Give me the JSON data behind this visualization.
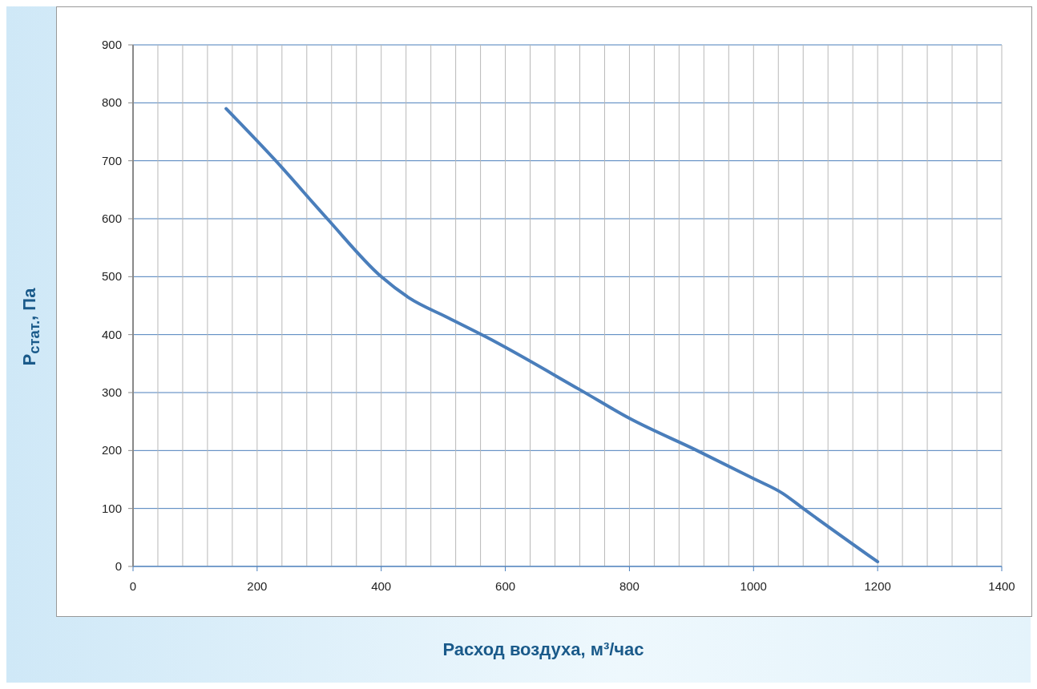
{
  "chart_data": {
    "type": "line",
    "xlabel": "Расход воздуха, м³/час",
    "ylabel": "P$_{стат.}$, Па",
    "x": [
      150,
      230,
      313,
      400,
      444,
      508,
      569,
      720,
      801,
      909,
      1001,
      1047,
      1080,
      1200
    ],
    "series": [
      {
        "color": "#4a7ebb",
        "values": [
          790,
          700,
          600,
          500,
          464,
          429,
          396,
          305,
          255,
          200,
          151,
          126,
          100,
          8
        ]
      }
    ],
    "xlim": [
      0,
      1400
    ],
    "xticks": [
      0,
      {
        "value": 40,
        "label": null
      },
      {
        "value": 80,
        "label": null
      },
      {
        "value": 120,
        "label": null
      },
      {
        "value": 160,
        "label": null
      },
      200,
      {
        "value": 240,
        "label": null
      },
      {
        "value": 280,
        "label": null
      },
      {
        "value": 320,
        "label": null
      },
      {
        "value": 360,
        "label": null
      },
      400,
      {
        "value": 440,
        "label": null
      },
      {
        "value": 480,
        "label": null
      },
      {
        "value": 520,
        "label": null
      },
      {
        "value": 560,
        "label": null
      },
      600,
      {
        "value": 640,
        "label": null
      },
      {
        "value": 680,
        "label": null
      },
      {
        "value": 720,
        "label": null
      },
      {
        "value": 760,
        "label": null
      },
      800,
      {
        "value": 840,
        "label": null
      },
      {
        "value": 880,
        "label": null
      },
      {
        "value": 920,
        "label": null
      },
      {
        "value": 960,
        "label": null
      },
      1000,
      {
        "value": 1040,
        "label": null
      },
      {
        "value": 1080,
        "label": null
      },
      {
        "value": 1120,
        "label": null
      },
      {
        "value": 1160,
        "label": null
      },
      1200,
      {
        "value": 1240,
        "label": null
      },
      {
        "value": 1280,
        "label": null
      },
      {
        "value": 1320,
        "label": null
      },
      {
        "value": 1360,
        "label": null
      },
      1400
    ],
    "ylim": [
      0,
      900
    ],
    "yticks": [
      0,
      100,
      200,
      300,
      400,
      500,
      600,
      700,
      800,
      900
    ],
    "grid": true,
    "marker": "none",
    "line_style": "solid",
    "legend": false
  }
}
